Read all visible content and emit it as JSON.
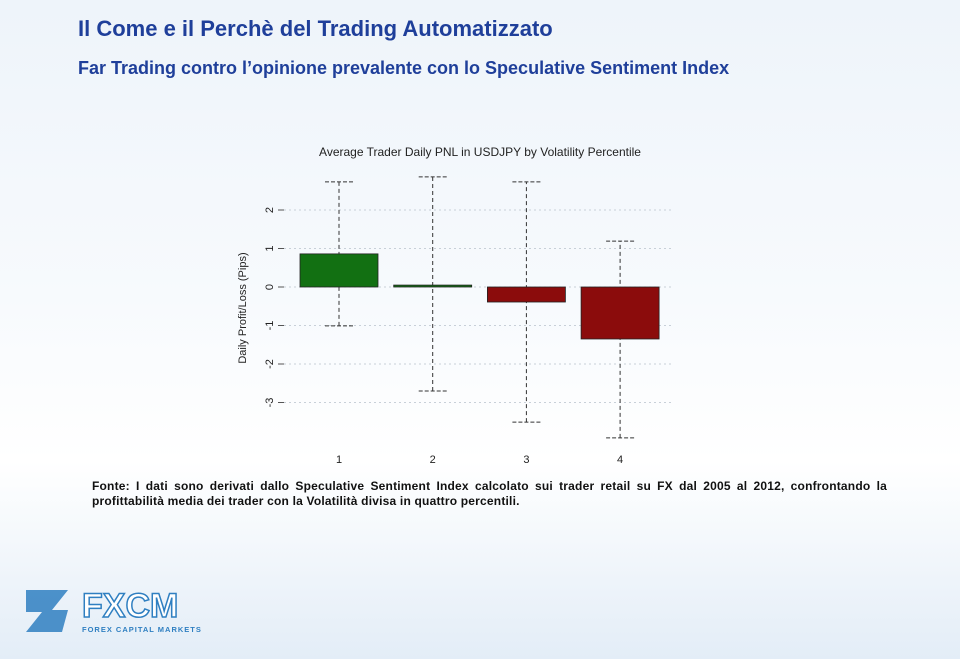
{
  "header": {
    "title": "Il Come e il Perchè del Trading Automatizzato",
    "subtitle": "Far Trading contro l’opinione prevalente con lo Speculative Sentiment Index"
  },
  "chart_data": {
    "type": "bar",
    "title": "Average Trader Daily PNL in USDJPY by Volatility Percentile",
    "y_label": "Daily Profit/Loss (Pips)",
    "categories": [
      "1",
      "2",
      "3",
      "4"
    ],
    "values": [
      0.86,
      0.05,
      -0.39,
      -1.35
    ],
    "whisker_low": [
      -1.01,
      -2.7,
      -3.51,
      -3.92
    ],
    "whisker_high": [
      2.73,
      2.86,
      2.73,
      1.19
    ],
    "colors": [
      "#127012",
      "#127012",
      "#8b0c0c",
      "#8b0c0c"
    ],
    "ylim": [
      -4.2,
      3.0
    ],
    "yticks": [
      -3,
      -2,
      -1,
      0,
      1,
      2
    ],
    "grid": true
  },
  "footnote": "Fonte: I dati sono derivati dallo Speculative Sentiment Index calcolato sui trader retail su FX dal 2005 al 2012, confrontando la profittabilità media dei trader con la Volatilità divisa in quattro percentili.",
  "logo": {
    "name": "FXCM",
    "tagline": "FOREX CAPITAL MARKETS"
  }
}
